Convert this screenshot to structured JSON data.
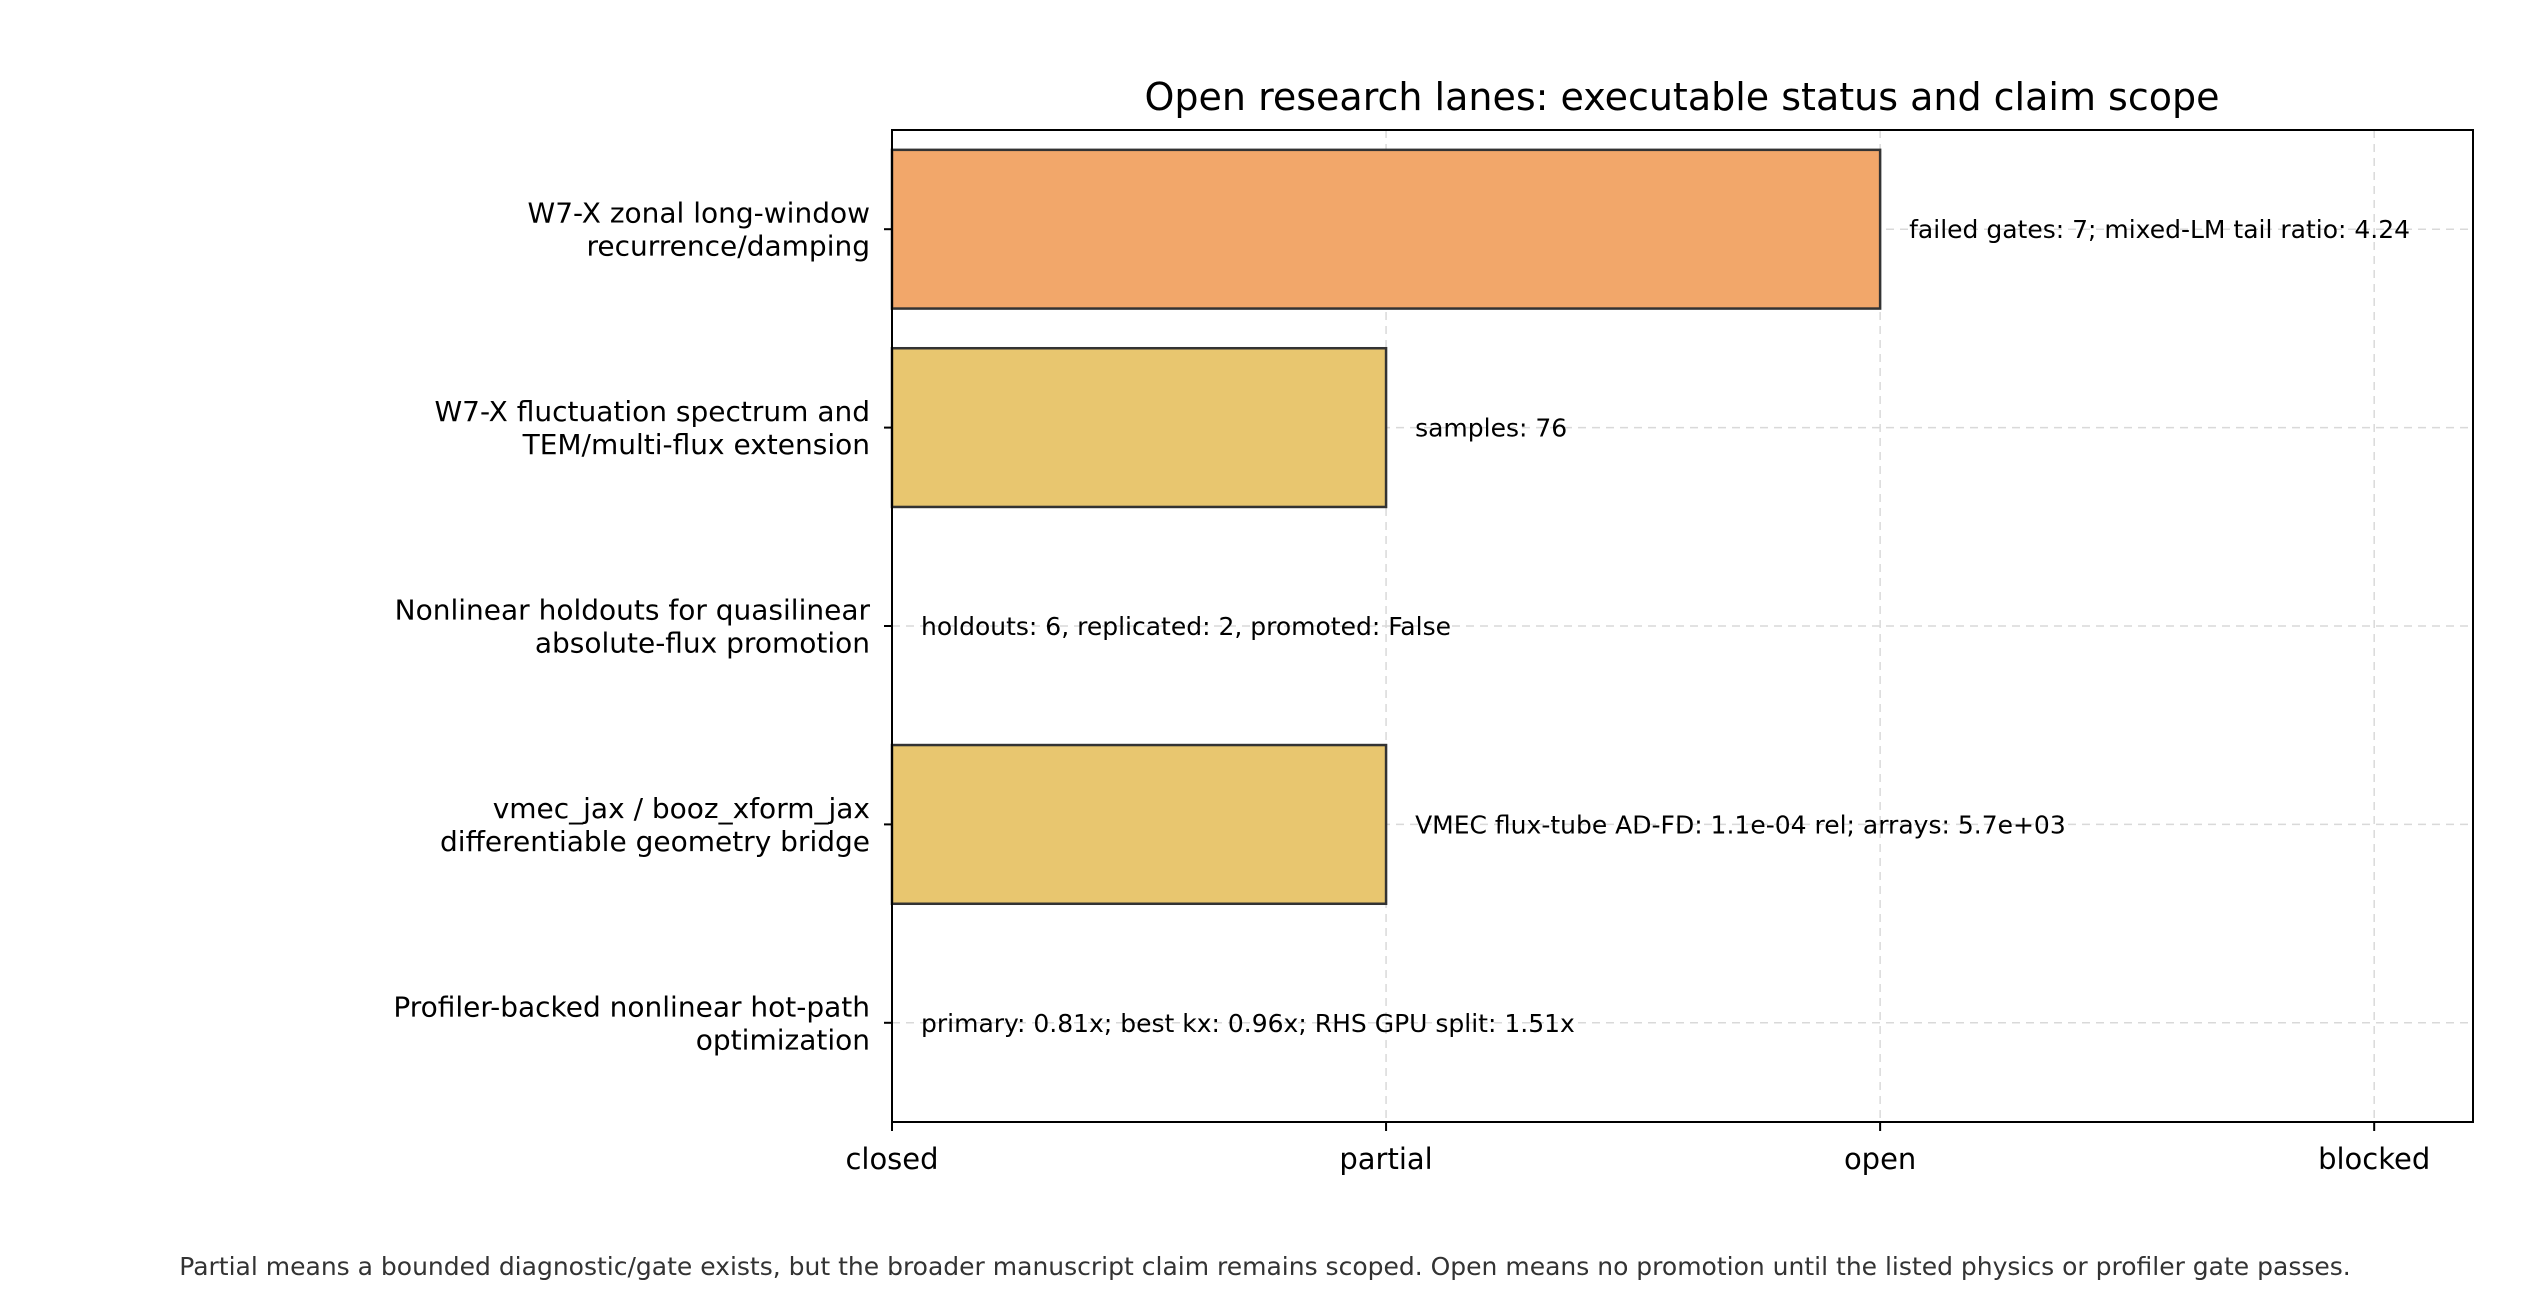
{
  "chart_data": {
    "type": "bar",
    "orientation": "horizontal",
    "title": "Open research lanes: executable status and claim scope",
    "xlabel": "",
    "ylabel": "",
    "x_ticks": [
      "closed",
      "partial",
      "open",
      "blocked"
    ],
    "xlim": [
      0,
      3.2
    ],
    "grid": true,
    "categories": [
      [
        "W7-X zonal long-window",
        "recurrence/damping"
      ],
      [
        "W7-X fluctuation spectrum and",
        "TEM/multi-flux extension"
      ],
      [
        "Nonlinear holdouts for quasilinear",
        "absolute-flux promotion"
      ],
      [
        "vmec_jax / booz_xform_jax",
        "differentiable geometry bridge"
      ],
      [
        "Profiler-backed nonlinear hot-path",
        "optimization"
      ]
    ],
    "values": [
      2,
      1,
      0,
      1,
      0
    ],
    "status": [
      "open",
      "partial",
      "closed",
      "partial",
      "closed"
    ],
    "colors": [
      "#f2a76a",
      "#e8c66f",
      "#e8c66f",
      "#e8c66f",
      "#e8c66f"
    ],
    "annotations": [
      "failed gates: 7; mixed-LM tail ratio: 4.24",
      "samples: 76",
      "holdouts: 6, replicated: 2, promoted: False",
      "VMEC flux-tube AD-FD: 1.1e-04 rel; arrays: 5.7e+03",
      "primary: 0.81x; best kx: 0.96x; RHS GPU split: 1.51x"
    ]
  },
  "caption": "Partial means a bounded diagnostic/gate exists, but the broader manuscript claim remains scoped. Open means no promotion until the listed physics or profiler gate passes."
}
